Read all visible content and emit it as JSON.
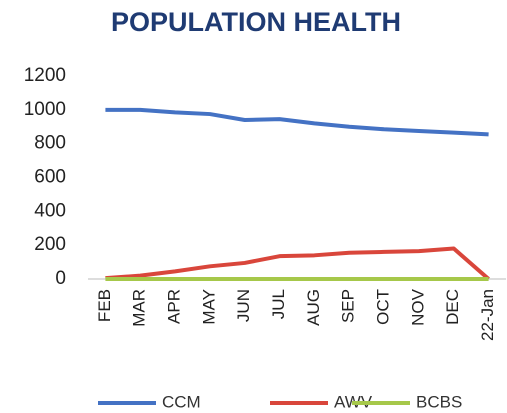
{
  "chart_data": {
    "type": "line",
    "title": "POPULATION HEALTH",
    "categories": [
      "FEB",
      "MAR",
      "APR",
      "MAY",
      "JUN",
      "JUL",
      "AUG",
      "SEP",
      "OCT",
      "NOV",
      "DEC",
      "22-Jan"
    ],
    "series": [
      {
        "name": "CCM",
        "color": "#4472c4",
        "values": [
          1000,
          1000,
          985,
          975,
          940,
          945,
          920,
          900,
          885,
          875,
          865,
          855
        ]
      },
      {
        "name": "AWV",
        "color": "#d9463b",
        "values": [
          5,
          20,
          45,
          75,
          95,
          135,
          140,
          155,
          160,
          165,
          180,
          0
        ]
      },
      {
        "name": "BCBS",
        "color": "#a6c84a",
        "values": [
          0,
          0,
          0,
          0,
          0,
          0,
          0,
          0,
          0,
          0,
          0,
          0
        ]
      }
    ],
    "ylim": [
      0,
      1200
    ],
    "yticks": [
      0,
      200,
      400,
      600,
      800,
      1000,
      1200
    ],
    "grid": false,
    "legend": "bottom"
  }
}
